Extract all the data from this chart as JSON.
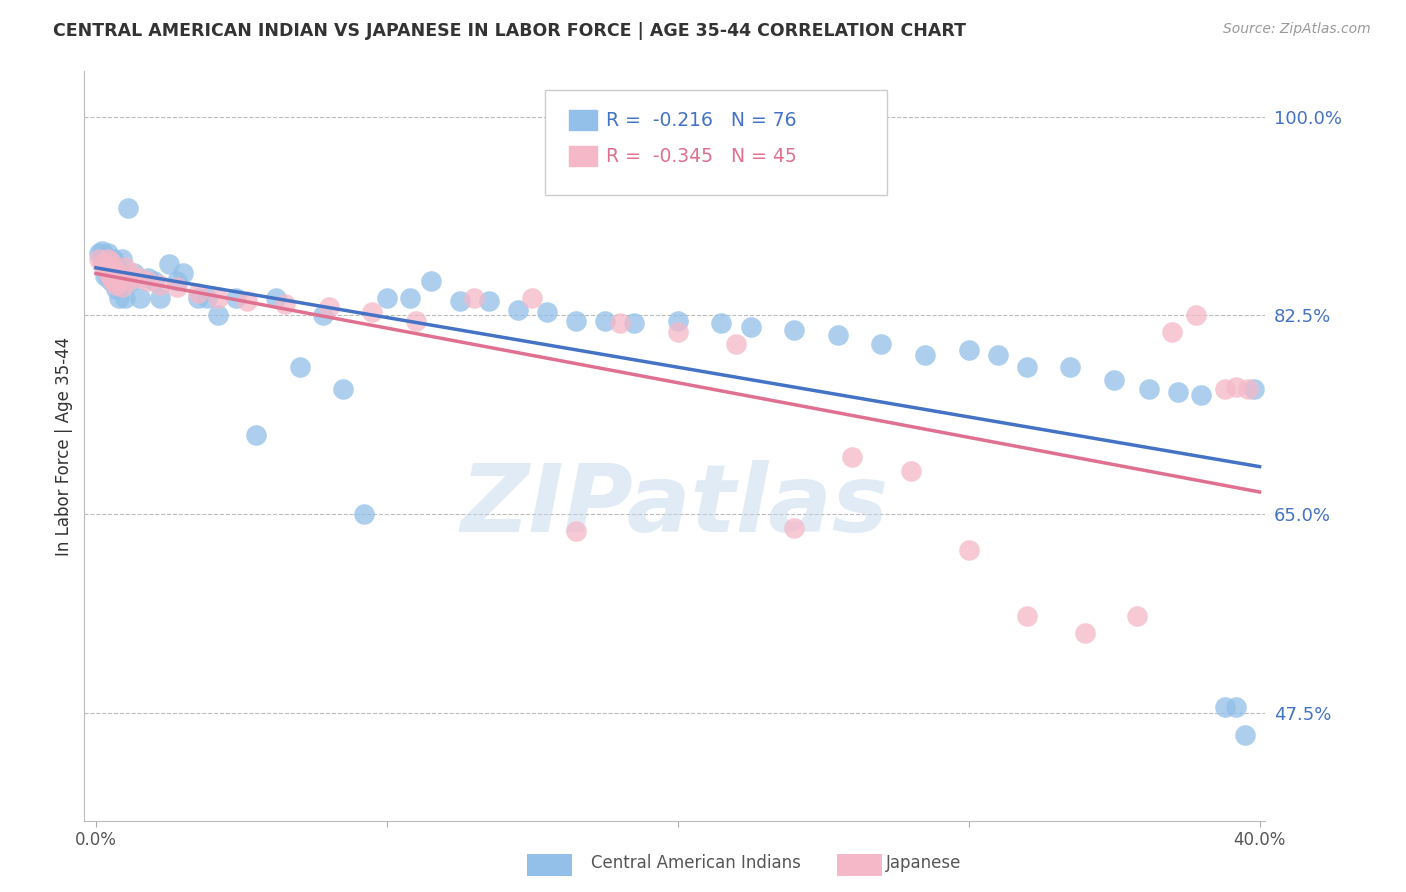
{
  "title": "CENTRAL AMERICAN INDIAN VS JAPANESE IN LABOR FORCE | AGE 35-44 CORRELATION CHART",
  "source": "Source: ZipAtlas.com",
  "ylabel": "In Labor Force | Age 35-44",
  "xlim": [
    -0.004,
    0.402
  ],
  "ylim": [
    0.38,
    1.04
  ],
  "yticks": [
    0.475,
    0.65,
    0.825,
    1.0
  ],
  "ytick_labels": [
    "47.5%",
    "65.0%",
    "82.5%",
    "100.0%"
  ],
  "xticks": [
    0.0,
    0.1,
    0.2,
    0.3,
    0.4
  ],
  "xtick_labels": [
    "0.0%",
    "",
    "",
    "",
    "40.0%"
  ],
  "blue_r": -0.216,
  "blue_n": 76,
  "pink_r": -0.345,
  "pink_n": 45,
  "blue_color": "#92c0e8",
  "pink_color": "#f5b8c8",
  "blue_line_color": "#4472c4",
  "pink_line_color": "#e07090",
  "legend_label_blue": "Central American Indians",
  "legend_label_pink": "Japanese",
  "background_color": "#ffffff",
  "grid_color": "#bbbbbb",
  "watermark": "ZIPatlas",
  "blue_x": [
    0.001,
    0.002,
    0.002,
    0.003,
    0.003,
    0.003,
    0.004,
    0.004,
    0.004,
    0.004,
    0.005,
    0.005,
    0.005,
    0.006,
    0.006,
    0.006,
    0.006,
    0.007,
    0.007,
    0.007,
    0.008,
    0.008,
    0.008,
    0.009,
    0.009,
    0.01,
    0.01,
    0.011,
    0.012,
    0.013,
    0.015,
    0.018,
    0.02,
    0.022,
    0.025,
    0.028,
    0.03,
    0.035,
    0.038,
    0.042,
    0.048,
    0.055,
    0.062,
    0.07,
    0.078,
    0.085,
    0.092,
    0.1,
    0.108,
    0.115,
    0.125,
    0.135,
    0.145,
    0.155,
    0.165,
    0.175,
    0.185,
    0.2,
    0.215,
    0.225,
    0.24,
    0.255,
    0.27,
    0.285,
    0.3,
    0.31,
    0.32,
    0.335,
    0.35,
    0.362,
    0.372,
    0.38,
    0.388,
    0.392,
    0.395,
    0.398
  ],
  "blue_y": [
    0.88,
    0.875,
    0.882,
    0.87,
    0.878,
    0.86,
    0.875,
    0.868,
    0.88,
    0.86,
    0.872,
    0.862,
    0.855,
    0.875,
    0.865,
    0.855,
    0.875,
    0.868,
    0.858,
    0.848,
    0.862,
    0.85,
    0.84,
    0.875,
    0.855,
    0.862,
    0.84,
    0.92,
    0.855,
    0.862,
    0.84,
    0.858,
    0.855,
    0.84,
    0.87,
    0.855,
    0.862,
    0.84,
    0.84,
    0.825,
    0.84,
    0.72,
    0.84,
    0.78,
    0.825,
    0.76,
    0.65,
    0.84,
    0.84,
    0.855,
    0.838,
    0.838,
    0.83,
    0.828,
    0.82,
    0.82,
    0.818,
    0.82,
    0.818,
    0.815,
    0.812,
    0.808,
    0.8,
    0.79,
    0.795,
    0.79,
    0.78,
    0.78,
    0.768,
    0.76,
    0.758,
    0.755,
    0.48,
    0.48,
    0.455,
    0.76
  ],
  "pink_x": [
    0.001,
    0.002,
    0.003,
    0.004,
    0.004,
    0.005,
    0.005,
    0.006,
    0.006,
    0.007,
    0.007,
    0.008,
    0.009,
    0.01,
    0.011,
    0.012,
    0.015,
    0.018,
    0.022,
    0.028,
    0.035,
    0.042,
    0.052,
    0.065,
    0.08,
    0.095,
    0.11,
    0.13,
    0.15,
    0.165,
    0.18,
    0.2,
    0.22,
    0.24,
    0.26,
    0.28,
    0.3,
    0.32,
    0.34,
    0.358,
    0.37,
    0.378,
    0.388,
    0.392,
    0.396
  ],
  "pink_y": [
    0.875,
    0.87,
    0.868,
    0.875,
    0.862,
    0.872,
    0.858,
    0.868,
    0.855,
    0.862,
    0.852,
    0.858,
    0.85,
    0.868,
    0.855,
    0.862,
    0.858,
    0.855,
    0.852,
    0.85,
    0.845,
    0.84,
    0.838,
    0.835,
    0.832,
    0.828,
    0.82,
    0.84,
    0.84,
    0.635,
    0.818,
    0.81,
    0.8,
    0.638,
    0.7,
    0.688,
    0.618,
    0.56,
    0.545,
    0.56,
    0.81,
    0.825,
    0.76,
    0.762,
    0.76
  ]
}
